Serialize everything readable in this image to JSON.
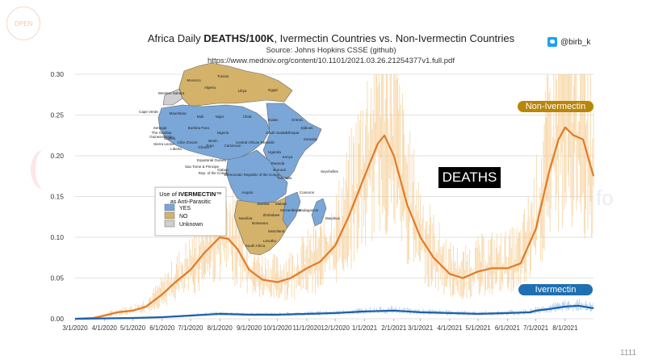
{
  "watermarks": {
    "logo": "OPEN",
    "right_text": "fo"
  },
  "header": {
    "title_prefix": "Africa Daily ",
    "title_bold": "DEATHS/100K",
    "title_suffix": ", Ivermectin Countries vs. Non-Ivermectin Countries",
    "source": "Source: Johns Hopkins CSSE (github)",
    "url": "https://www.medrxiv.org/content/10.1101/2021.03.26.21254377v1.full.pdf"
  },
  "twitter_handle": "@birb_k",
  "corner_number": "1111",
  "labels": {
    "non_ivermectin": "Non-Ivermectin",
    "ivermectin": "Ivermectin",
    "deaths": "DEATHS"
  },
  "map": {
    "legend_title": "Use of IVERMECTIN™",
    "legend_title_bold": "IVERMECTIN",
    "legend_subtitle": "as Anti-Parasitic",
    "legend_items": [
      {
        "label": "YES",
        "color": "#7aa7d8"
      },
      {
        "label": "NO",
        "color": "#d4b26a"
      },
      {
        "label": "Unknown",
        "color": "#cfcfcf"
      }
    ],
    "country_labels": [
      "Tunisia",
      "Morocco",
      "Algeria",
      "Libya",
      "Egypt",
      "Western Sahara",
      "Cape Verde",
      "Mauritania",
      "Mali",
      "Niger",
      "Chad",
      "Sudan",
      "Eritrea",
      "Senegal",
      "The Gambia",
      "Guinea-Bissau",
      "Guinea",
      "Sierra Leone",
      "Liberia",
      "Burkina Faso",
      "Côte d'Ivoire",
      "Ghana",
      "Benin",
      "Togo",
      "Nigeria",
      "Cameroon",
      "Central African Republic",
      "South Sudan",
      "Ethiopia",
      "Djibouti",
      "Somalia",
      "Kenya",
      "Uganda",
      "Rwanda",
      "Burundi",
      "Tanzania",
      "Equatorial Guinea",
      "Sao Tome & Principe",
      "Gabon",
      "Rep. of the Congo",
      "Democratic Republic of the Congo",
      "Angola",
      "Zambia",
      "Malawi",
      "Mozambique",
      "Zimbabwe",
      "Namibia",
      "Botswana",
      "South Africa",
      "Lesotho",
      "Swaziland",
      "Madagascar",
      "Comoros",
      "Seychelles",
      "Mauritius"
    ]
  },
  "colors": {
    "non_ivermectin": "#e07b2a",
    "non_ivermectin_daily": "#f5c98a",
    "ivermectin": "#1f5fa8",
    "ivermectin_daily": "#8fbde6",
    "grid": "#d9d9d9"
  },
  "chart_data": {
    "type": "line",
    "title": "Africa Daily DEATHS/100K, Ivermectin Countries vs. Non-Ivermectin Countries",
    "xlabel": "",
    "ylabel": "",
    "ylim": [
      0,
      0.3
    ],
    "xlim": [
      "3/1/2020",
      "8/31/2021"
    ],
    "grid": true,
    "y_ticks": [
      "0.00",
      "0.05",
      "0.10",
      "0.15",
      "0.20",
      "0.25",
      "0.30"
    ],
    "x_ticks": [
      "3/1/2020",
      "4/1/2020",
      "5/1/2020",
      "6/1/2020",
      "7/1/2020",
      "8/1/2020",
      "9/1/2020",
      "10/1/2020",
      "11/1/2020",
      "12/1/2020",
      "1/1/2021",
      "2/1/2021",
      "3/1/2021",
      "4/1/2021",
      "5/1/2021",
      "6/1/2021",
      "7/1/2021",
      "8/1/2021"
    ],
    "series": [
      {
        "name": "Non-Ivermectin",
        "x": [
          "3/1/2020",
          "3/20/2020",
          "4/1/2020",
          "4/15/2020",
          "5/1/2020",
          "5/15/2020",
          "6/1/2020",
          "6/15/2020",
          "7/1/2020",
          "7/15/2020",
          "8/1/2020",
          "8/10/2020",
          "8/20/2020",
          "9/1/2020",
          "9/15/2020",
          "10/1/2020",
          "10/15/2020",
          "11/1/2020",
          "11/15/2020",
          "12/1/2020",
          "12/15/2020",
          "1/1/2021",
          "1/15/2021",
          "1/22/2021",
          "2/1/2021",
          "2/15/2021",
          "3/1/2021",
          "3/15/2021",
          "4/1/2021",
          "4/15/2021",
          "5/1/2021",
          "5/15/2021",
          "6/1/2021",
          "6/15/2021",
          "7/1/2021",
          "7/15/2021",
          "7/25/2021",
          "8/1/2021",
          "8/10/2021",
          "8/20/2021",
          "8/31/2021"
        ],
        "values": [
          0.0,
          0.001,
          0.004,
          0.008,
          0.01,
          0.015,
          0.03,
          0.045,
          0.06,
          0.08,
          0.1,
          0.098,
          0.085,
          0.06,
          0.048,
          0.045,
          0.05,
          0.062,
          0.07,
          0.09,
          0.125,
          0.175,
          0.215,
          0.225,
          0.2,
          0.14,
          0.1,
          0.075,
          0.055,
          0.05,
          0.058,
          0.062,
          0.062,
          0.068,
          0.11,
          0.18,
          0.22,
          0.235,
          0.225,
          0.22,
          0.175
        ]
      },
      {
        "name": "Ivermectin",
        "x": [
          "3/1/2020",
          "4/1/2020",
          "5/1/2020",
          "6/1/2020",
          "7/1/2020",
          "8/1/2020",
          "9/1/2020",
          "10/1/2020",
          "11/1/2020",
          "12/1/2020",
          "1/1/2021",
          "2/1/2021",
          "3/1/2021",
          "4/1/2021",
          "5/1/2021",
          "6/1/2021",
          "6/25/2021",
          "7/1/2021",
          "7/15/2021",
          "8/1/2021",
          "8/15/2021",
          "8/31/2021"
        ],
        "values": [
          0.0,
          0.0005,
          0.001,
          0.002,
          0.004,
          0.006,
          0.005,
          0.005,
          0.006,
          0.007,
          0.009,
          0.01,
          0.008,
          0.007,
          0.006,
          0.007,
          0.008,
          0.01,
          0.012,
          0.015,
          0.016,
          0.013
        ]
      }
    ]
  }
}
